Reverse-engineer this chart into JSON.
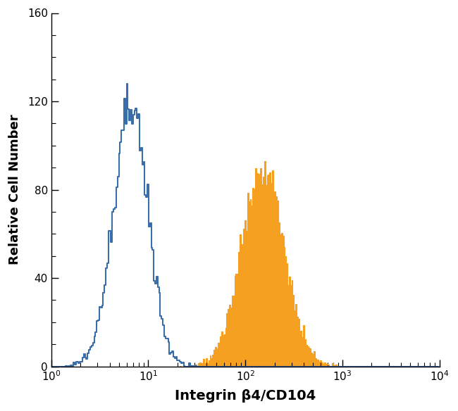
{
  "title": "",
  "xlabel": "Integrin β4/CD104",
  "ylabel": "Relative Cell Number",
  "xlim": [
    1.0,
    10000.0
  ],
  "ylim": [
    0,
    160
  ],
  "yticks": [
    0,
    40,
    80,
    120,
    160
  ],
  "blue_color": "#3a6ea8",
  "orange_color": "#f5a020",
  "background_color": "#ffffff",
  "xlabel_fontsize": 14,
  "ylabel_fontsize": 13,
  "blue_log_mean": 0.82,
  "blue_log_std": 0.18,
  "blue_peak_height": 128,
  "orange_log_mean": 2.18,
  "orange_log_std": 0.22,
  "orange_peak_height": 93,
  "n_bins": 300,
  "log_min": 0.0,
  "log_max": 4.0
}
